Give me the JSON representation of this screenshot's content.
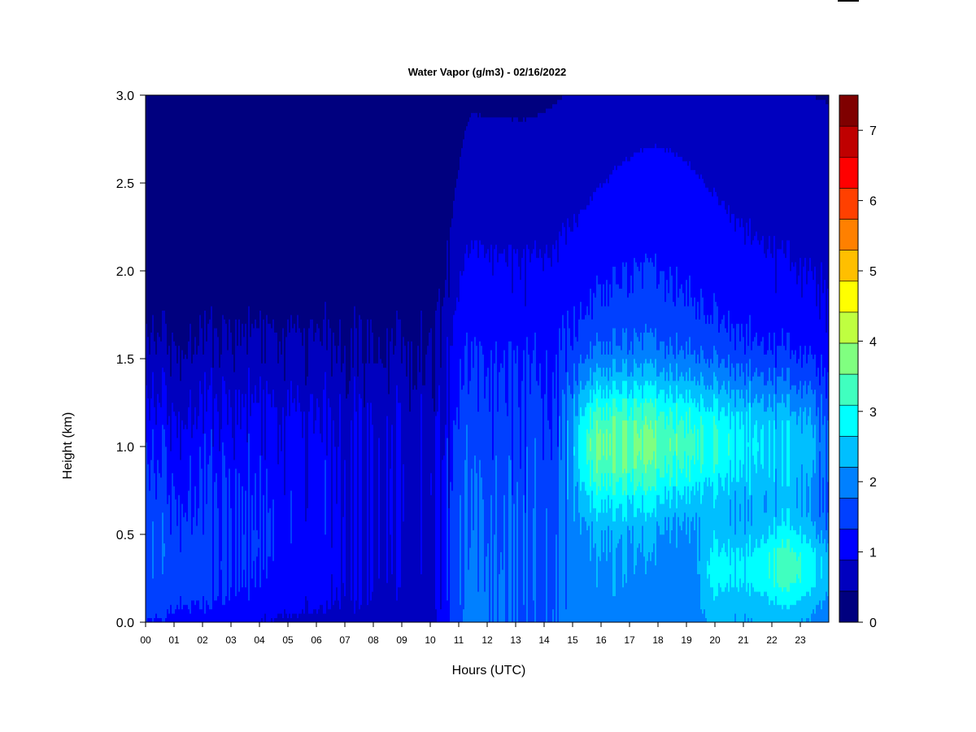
{
  "chart_data": {
    "type": "heatmap",
    "title": "Water Vapor (g/m3) - 02/16/2022",
    "xlabel": "Hours (UTC)",
    "ylabel": "Height (km)",
    "xlim": [
      0,
      24
    ],
    "ylim": [
      0,
      3
    ],
    "x_ticks": [
      "00",
      "01",
      "02",
      "03",
      "04",
      "05",
      "06",
      "07",
      "08",
      "09",
      "10",
      "11",
      "12",
      "13",
      "14",
      "15",
      "16",
      "17",
      "18",
      "19",
      "20",
      "21",
      "22",
      "23"
    ],
    "y_ticks": [
      "0.0",
      "0.5",
      "1.0",
      "1.5",
      "2.0",
      "2.5",
      "3.0"
    ],
    "colorbar": {
      "min": 0,
      "max": 7.5,
      "step": 0.5,
      "tick_labels": [
        "0",
        "1",
        "2",
        "3",
        "4",
        "5",
        "6",
        "7"
      ],
      "colors": [
        "#00007f",
        "#0000bf",
        "#0000ff",
        "#0040ff",
        "#0080ff",
        "#00bfff",
        "#00ffff",
        "#40ffbf",
        "#80ff80",
        "#bfff40",
        "#ffff00",
        "#ffbf00",
        "#ff8000",
        "#ff4000",
        "#ff0000",
        "#bf0000",
        "#7f0000"
      ]
    },
    "grid": false,
    "legend": "right colorbar"
  }
}
